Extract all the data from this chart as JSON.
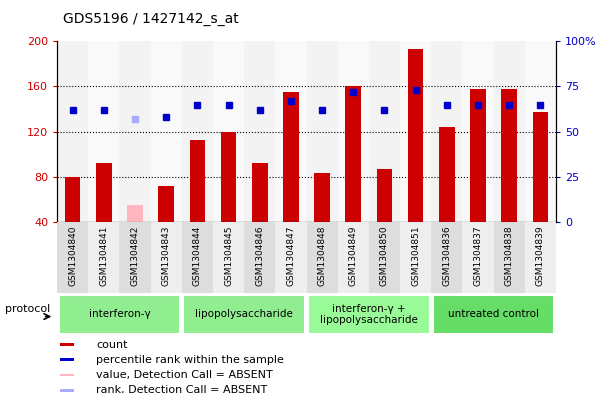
{
  "title": "GDS5196 / 1427142_s_at",
  "samples": [
    "GSM1304840",
    "GSM1304841",
    "GSM1304842",
    "GSM1304843",
    "GSM1304844",
    "GSM1304845",
    "GSM1304846",
    "GSM1304847",
    "GSM1304848",
    "GSM1304849",
    "GSM1304850",
    "GSM1304851",
    "GSM1304836",
    "GSM1304837",
    "GSM1304838",
    "GSM1304839"
  ],
  "counts": [
    80,
    92,
    null,
    72,
    113,
    120,
    92,
    155,
    83,
    160,
    87,
    193,
    124,
    158,
    158,
    137
  ],
  "absent_counts": [
    null,
    null,
    55,
    null,
    null,
    null,
    null,
    null,
    null,
    null,
    null,
    null,
    null,
    null,
    null,
    null
  ],
  "percentile_ranks": [
    62,
    62,
    null,
    58,
    65,
    65,
    62,
    67,
    62,
    72,
    62,
    73,
    65,
    65,
    65,
    65
  ],
  "absent_ranks": [
    null,
    null,
    57,
    null,
    null,
    null,
    null,
    null,
    null,
    null,
    null,
    null,
    null,
    null,
    null,
    null
  ],
  "groups": [
    {
      "label": "interferon-γ",
      "start": 0,
      "end": 3,
      "color": "#90EE90"
    },
    {
      "label": "lipopolysaccharide",
      "start": 4,
      "end": 7,
      "color": "#90EE90"
    },
    {
      "label": "interferon-γ +\nlipopolysaccharide",
      "start": 8,
      "end": 11,
      "color": "#98FB98"
    },
    {
      "label": "untreated control",
      "start": 12,
      "end": 15,
      "color": "#66DD66"
    }
  ],
  "ylim_left": [
    40,
    200
  ],
  "ylim_right": [
    0,
    100
  ],
  "yticks_left": [
    40,
    80,
    120,
    160,
    200
  ],
  "yticks_right": [
    0,
    25,
    50,
    75,
    100
  ],
  "ytick_labels_right": [
    "0",
    "25",
    "50",
    "75",
    "100%"
  ],
  "bar_color": "#CC0000",
  "absent_bar_color": "#FFB6C1",
  "dot_color": "#0000CC",
  "absent_dot_color": "#AAAAFF",
  "bar_width": 0.5,
  "left_axis_color": "#CC0000",
  "right_axis_color": "#0000CC",
  "background_color": "#FFFFFF",
  "plot_bg_color": "#FFFFFF",
  "col_bg_even": "#DDDDDD",
  "col_bg_odd": "#EEEEEE"
}
